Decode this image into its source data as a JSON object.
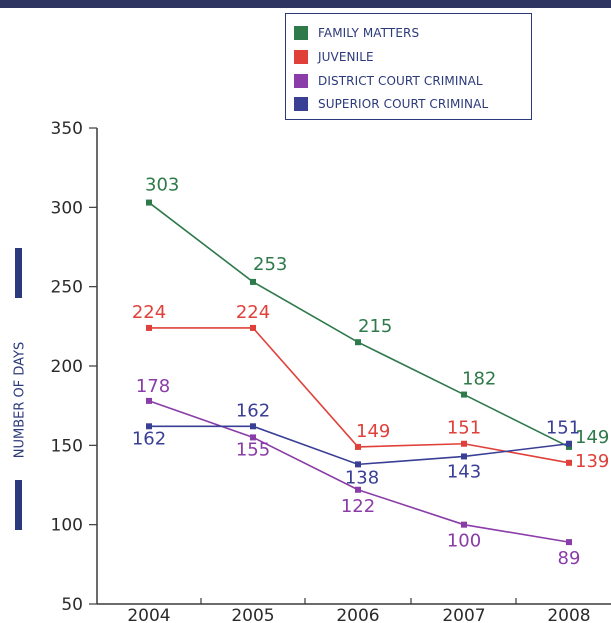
{
  "chart_data": {
    "type": "line",
    "ylabel": "NUMBER OF DAYS",
    "x": [
      "2004",
      "2005",
      "2006",
      "2007",
      "2008"
    ],
    "yticks": [
      "350",
      "300",
      "250",
      "200",
      "150",
      "100",
      "50"
    ],
    "ylim": [
      50,
      350
    ],
    "grid": false,
    "legend_position": "top-right",
    "series": [
      {
        "name": "FAMILY MATTERS",
        "color": "#2e7a4a",
        "values": [
          303,
          253,
          215,
          182,
          149
        ],
        "labels": [
          "303",
          "253",
          "215",
          "182",
          "149"
        ]
      },
      {
        "name": "JUVENILE",
        "color": "#e0403a",
        "values": [
          224,
          224,
          149,
          151,
          139
        ],
        "labels": [
          "224",
          "224",
          "149",
          "151",
          "139"
        ]
      },
      {
        "name": "DISTRICT COURT CRIMINAL",
        "color": "#8a3ca8",
        "values": [
          178,
          155,
          122,
          100,
          89
        ],
        "labels": [
          "178",
          "155",
          "122",
          "100",
          "89"
        ]
      },
      {
        "name": "SUPERIOR COURT CRIMINAL",
        "color": "#3a3f96",
        "values": [
          162,
          162,
          138,
          143,
          151
        ],
        "labels": [
          "162",
          "162",
          "138",
          "143",
          "151"
        ]
      }
    ]
  }
}
